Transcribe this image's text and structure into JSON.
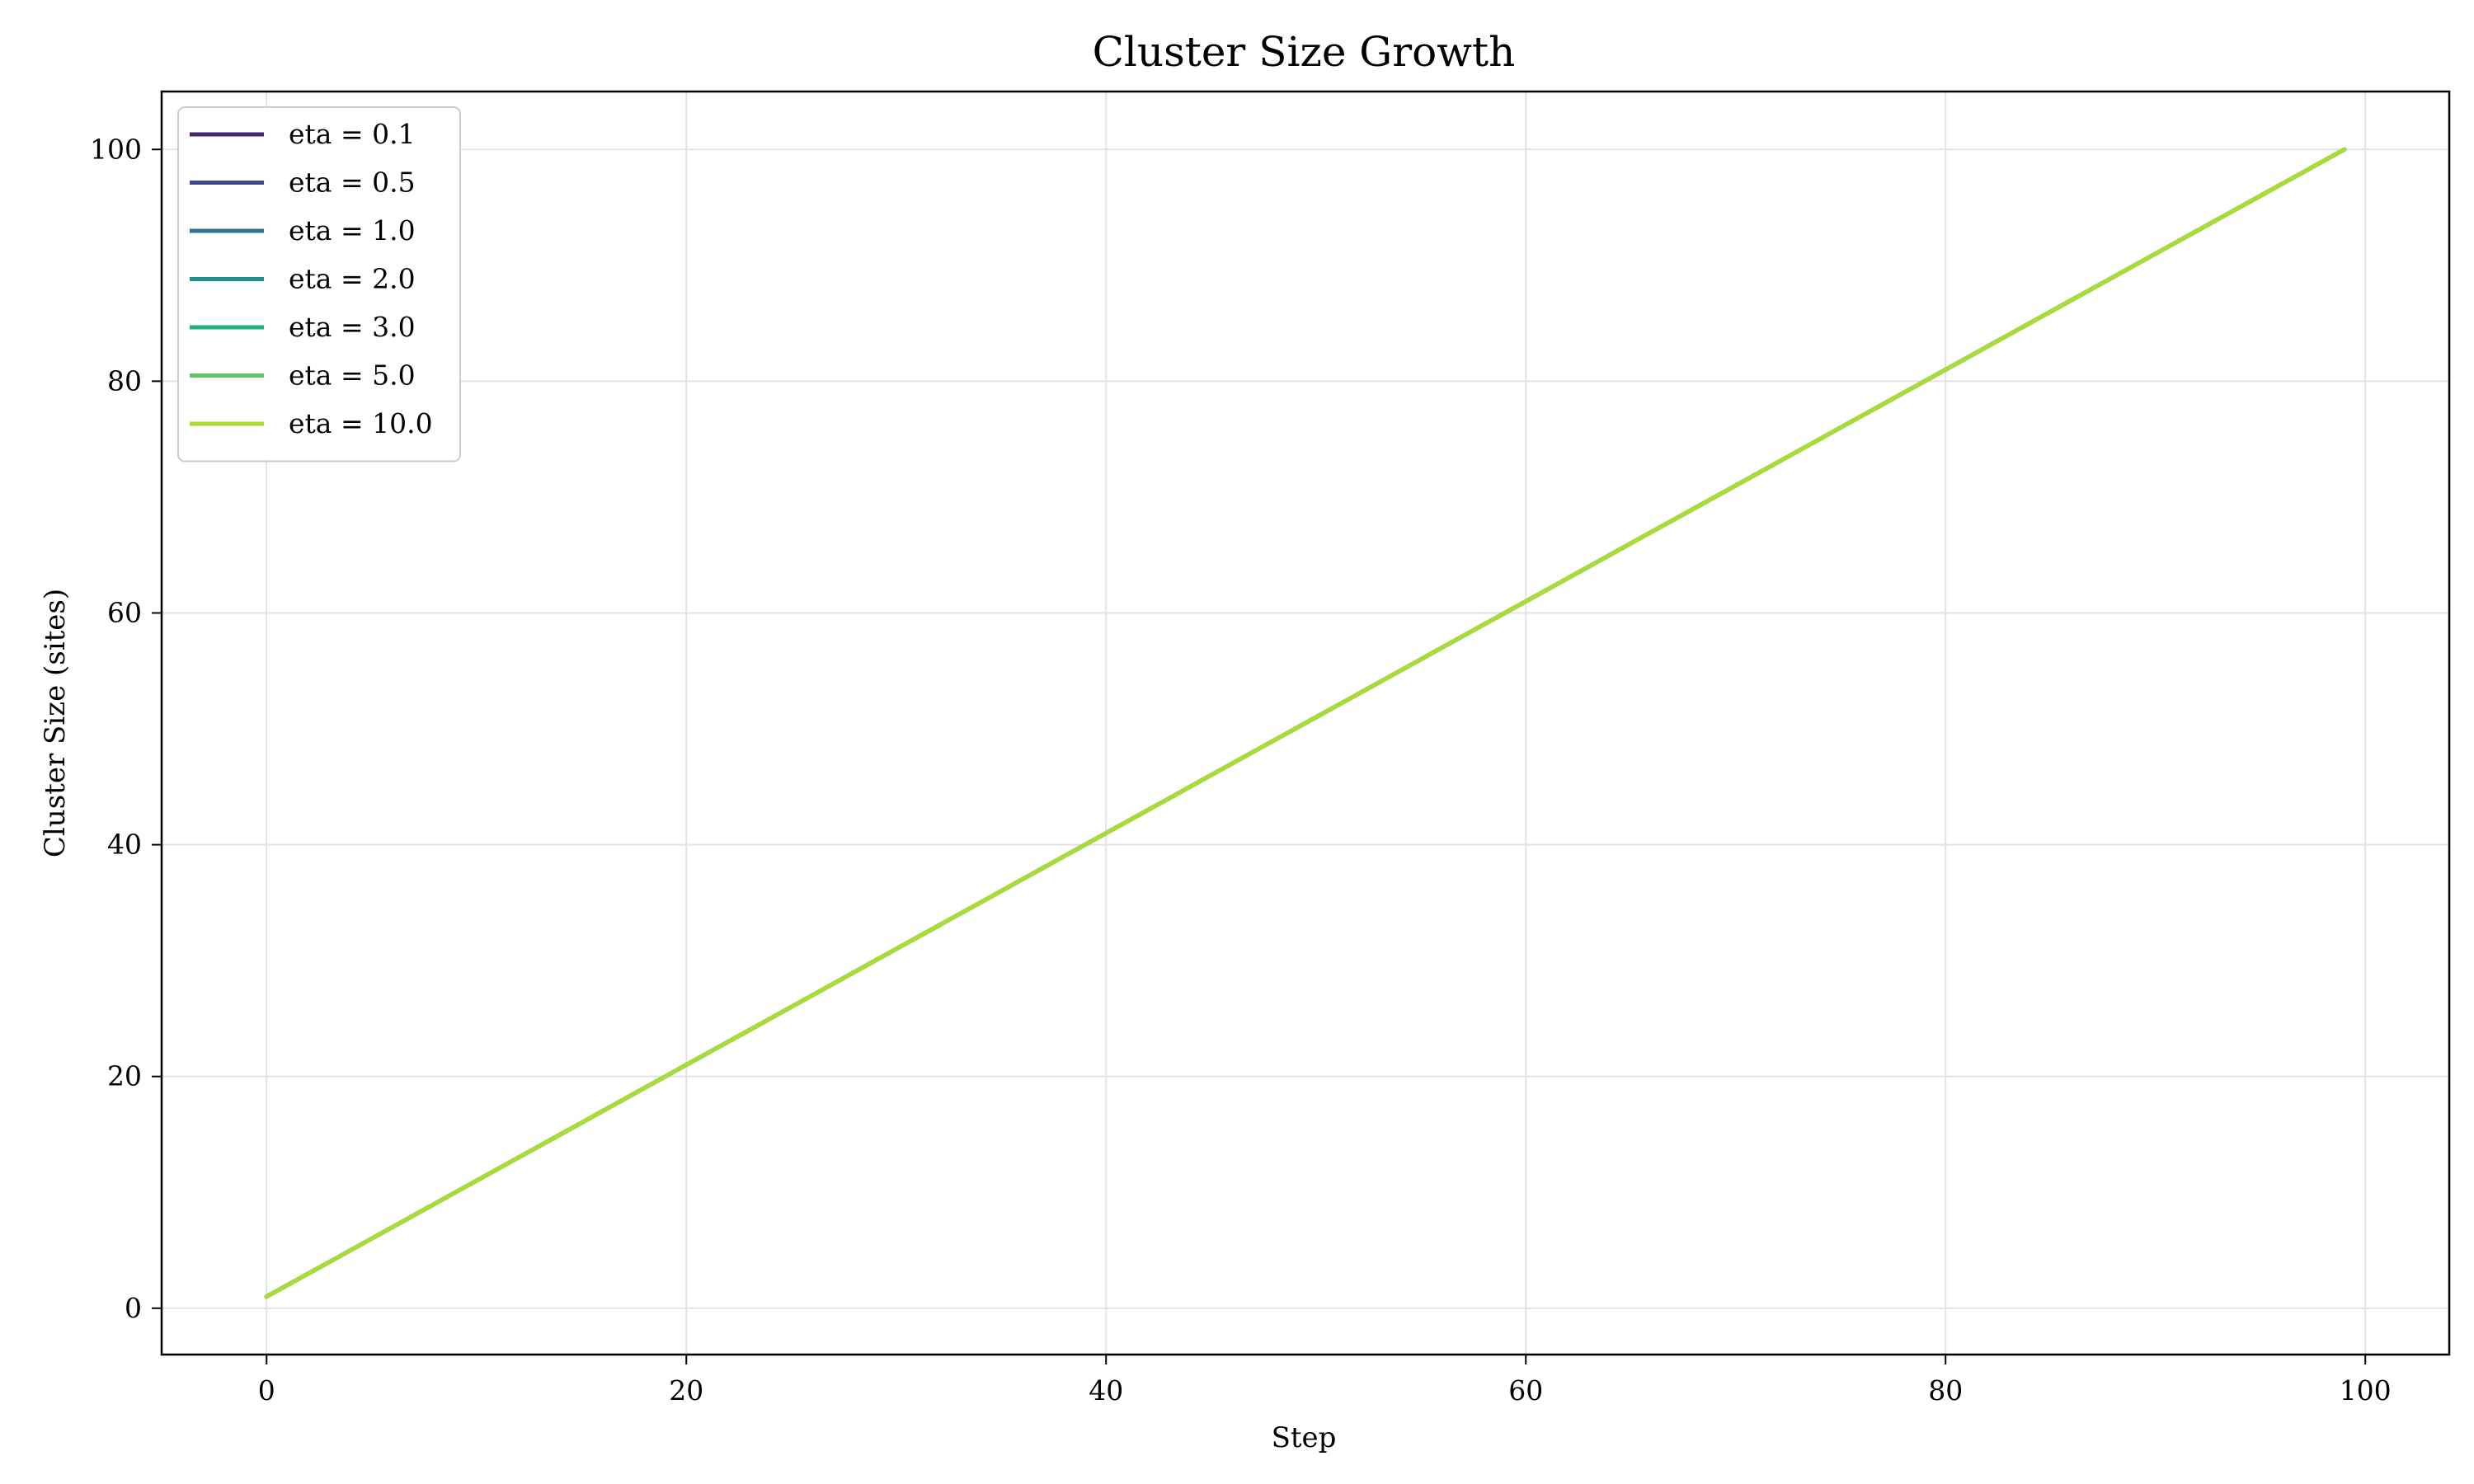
{
  "chart_data": {
    "type": "line",
    "title": "Cluster Size Growth",
    "xlabel": "Step",
    "ylabel": "Cluster Size (sites)",
    "xlim": [
      -5,
      104
    ],
    "ylim": [
      -4,
      105
    ],
    "xticks": [
      0,
      20,
      40,
      60,
      80,
      100
    ],
    "yticks": [
      0,
      20,
      40,
      60,
      80,
      100
    ],
    "grid": true,
    "legend_position": "top-left",
    "x": {
      "start": 0,
      "end": 99,
      "step": 1
    },
    "series": [
      {
        "name": "eta = 0.1",
        "color": "#46276e",
        "y_start": 1,
        "y_end": 100
      },
      {
        "name": "eta = 0.5",
        "color": "#3e4a89",
        "y_start": 1,
        "y_end": 100
      },
      {
        "name": "eta = 1.0",
        "color": "#2c718e",
        "y_start": 1,
        "y_end": 100
      },
      {
        "name": "eta = 2.0",
        "color": "#21908d",
        "y_start": 1,
        "y_end": 100
      },
      {
        "name": "eta = 3.0",
        "color": "#27ad81",
        "y_start": 1,
        "y_end": 100
      },
      {
        "name": "eta = 5.0",
        "color": "#5cc863",
        "y_start": 1,
        "y_end": 100
      },
      {
        "name": "eta = 10.0",
        "color": "#aadc32",
        "y_start": 1,
        "y_end": 100
      }
    ]
  }
}
